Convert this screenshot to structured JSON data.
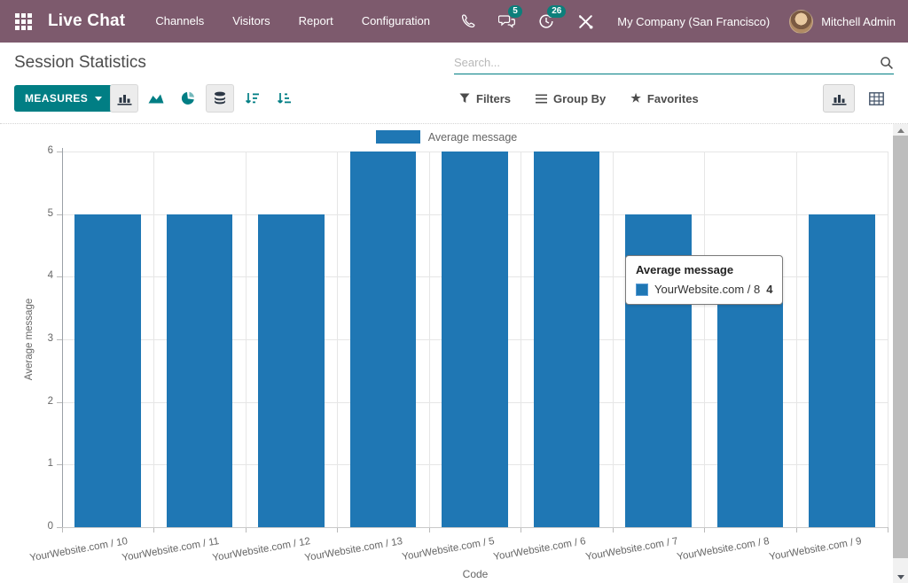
{
  "navbar": {
    "app_name": "Live Chat",
    "menu": [
      {
        "label": "Channels"
      },
      {
        "label": "Visitors"
      },
      {
        "label": "Report"
      },
      {
        "label": "Configuration"
      }
    ],
    "messages_badge": "5",
    "activities_badge": "26",
    "company": "My Company (San Francisco)",
    "user_name": "Mitchell Admin"
  },
  "control_panel": {
    "title": "Session Statistics",
    "search_placeholder": "Search...",
    "measures_button": "MEASURES",
    "filters_label": "Filters",
    "group_by_label": "Group By",
    "favorites_label": "Favorites"
  },
  "tooltip": {
    "title": "Average message",
    "label": "YourWebsite.com / 8",
    "value": "4"
  },
  "chart_data": {
    "type": "bar",
    "title": "",
    "categories": [
      "YourWebsite.com / 10",
      "YourWebsite.com / 11",
      "YourWebsite.com / 12",
      "YourWebsite.com / 13",
      "YourWebsite.com / 5",
      "YourWebsite.com / 6",
      "YourWebsite.com / 7",
      "YourWebsite.com / 8",
      "YourWebsite.com / 9"
    ],
    "series": [
      {
        "name": "Average message",
        "values": [
          5,
          5,
          5,
          6,
          6,
          6,
          5,
          4,
          5
        ]
      }
    ],
    "xlabel": "Code",
    "ylabel": "Average message",
    "ylim": [
      0,
      6
    ],
    "yticks": [
      0,
      1,
      2,
      3,
      4,
      5,
      6
    ],
    "grid": true,
    "legend_position": "top",
    "bar_color": "#1f77b4"
  },
  "colors": {
    "navbar_bg": "#7d5a6d",
    "accent_teal": "#017e84",
    "badge_teal": "#0c7f7b",
    "bar_blue": "#1f77b4"
  }
}
